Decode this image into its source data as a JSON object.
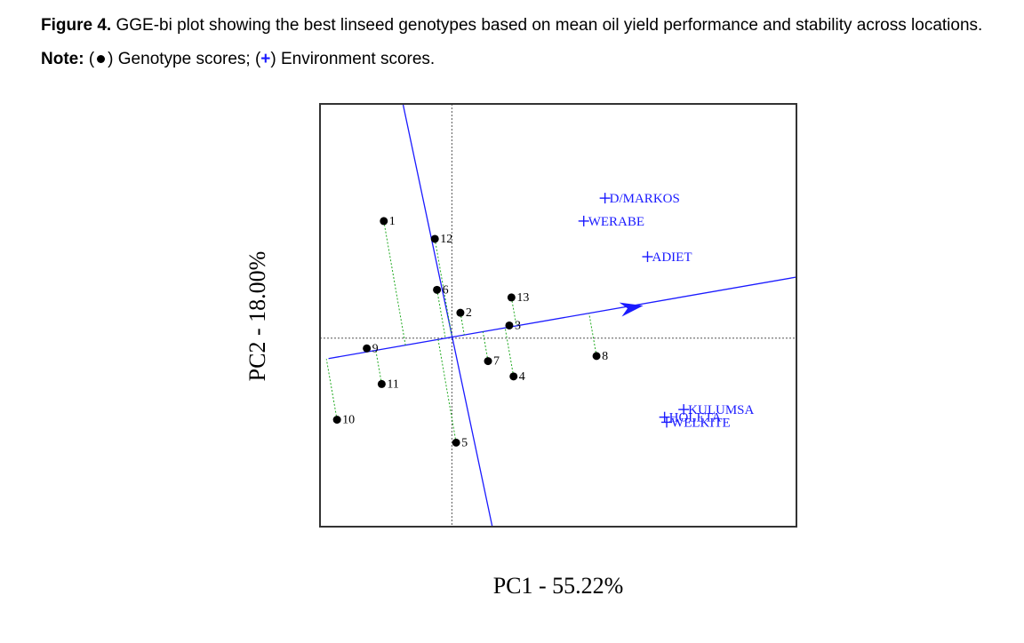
{
  "caption": {
    "figure_label": "Figure 4.",
    "text": " GGE-bi plot showing the best linseed genotypes based on mean oil yield performance and stability across locations. ",
    "note_label": "Note:",
    "genotype_legend": " Genotype scores; ",
    "environment_legend": " Environment scores."
  },
  "chart_data": {
    "type": "scatter",
    "xlabel": "PC1 - 55.22%",
    "ylabel": "PC2 - 18.00%",
    "xlim": [
      -0.62,
      1.62
    ],
    "ylim": [
      -0.74,
      0.92
    ],
    "origin_lines": true,
    "colors": {
      "genotype": "#000000",
      "environment": "#1a1aff",
      "axis_line": "#1a1aff",
      "projection": "#22aa22",
      "frame": "#333333"
    },
    "genotypes": [
      {
        "label": "1",
        "x": -0.32,
        "y": 0.46
      },
      {
        "label": "2",
        "x": 0.04,
        "y": 0.1
      },
      {
        "label": "3",
        "x": 0.27,
        "y": 0.05
      },
      {
        "label": "4",
        "x": 0.29,
        "y": -0.15
      },
      {
        "label": "5",
        "x": 0.02,
        "y": -0.41
      },
      {
        "label": "6",
        "x": -0.07,
        "y": 0.19
      },
      {
        "label": "7",
        "x": 0.17,
        "y": -0.09
      },
      {
        "label": "8",
        "x": 0.68,
        "y": -0.07
      },
      {
        "label": "9",
        "x": -0.4,
        "y": -0.04
      },
      {
        "label": "10",
        "x": -0.54,
        "y": -0.32
      },
      {
        "label": "11",
        "x": -0.33,
        "y": -0.18
      },
      {
        "label": "12",
        "x": -0.08,
        "y": 0.39
      },
      {
        "label": "13",
        "x": 0.28,
        "y": 0.16
      }
    ],
    "environments": [
      {
        "label": "D/MARKOS",
        "x": 0.72,
        "y": 0.55
      },
      {
        "label": "WERABE",
        "x": 0.62,
        "y": 0.46
      },
      {
        "label": "ADIET",
        "x": 0.92,
        "y": 0.32
      },
      {
        "label": "KULUMSA",
        "x": 1.09,
        "y": -0.28
      },
      {
        "label": "HOLETA",
        "x": 1.0,
        "y": -0.31
      },
      {
        "label": "WELKITE",
        "x": 1.01,
        "y": -0.33
      }
    ],
    "aec_abscissa": {
      "from": [
        -0.58,
        -0.08
      ],
      "to": [
        1.62,
        0.24
      ],
      "arrow_at": [
        0.9,
        0.128
      ]
    },
    "aec_ordinate": {
      "from": [
        -0.23,
        0.92
      ],
      "to": [
        0.19,
        -0.74
      ]
    }
  }
}
